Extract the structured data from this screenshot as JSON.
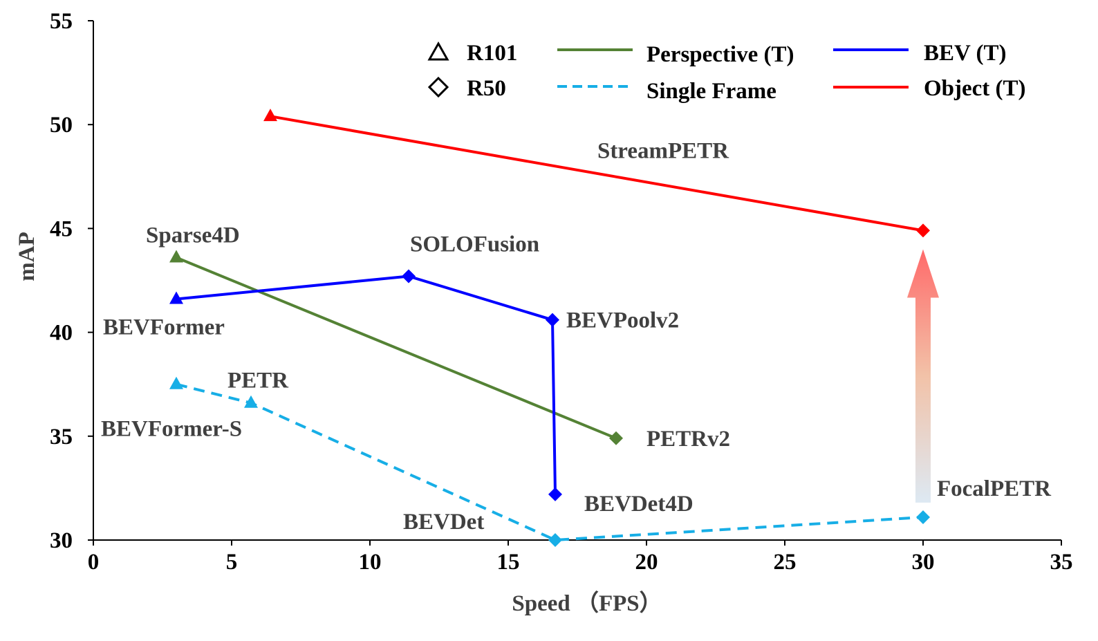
{
  "chart_data": {
    "type": "line",
    "title": "",
    "xlabel": "Speed （FPS）",
    "ylabel": "mAP",
    "xlim": [
      0,
      35
    ],
    "ylim": [
      30,
      55
    ],
    "xticks": [
      "0",
      "5",
      "10",
      "15",
      "20",
      "25",
      "30",
      "35"
    ],
    "yticks": [
      "30",
      "35",
      "40",
      "45",
      "50",
      "55"
    ],
    "grid": false,
    "legend": {
      "placement": "top",
      "markers": [
        {
          "label": "R101",
          "marker": "triangle"
        },
        {
          "label": "R50",
          "marker": "diamond"
        }
      ],
      "lines": [
        {
          "label": "Perspective (T)",
          "color": "#548235",
          "dash": "solid"
        },
        {
          "label": "Single Frame",
          "color": "#17AEE6",
          "dash": "dashed"
        },
        {
          "label": "BEV (T)",
          "color": "#0000FF",
          "dash": "solid"
        },
        {
          "label": "Object (T)",
          "color": "#FF0000",
          "dash": "solid"
        }
      ]
    },
    "series": [
      {
        "name": "Object (T)",
        "color": "#FF0000",
        "dash": "solid",
        "points": [
          {
            "x": 6.4,
            "y": 50.4,
            "marker": "triangle",
            "label": ""
          },
          {
            "x": 30.0,
            "y": 44.9,
            "marker": "diamond",
            "label": ""
          }
        ]
      },
      {
        "name": "Perspective (T)",
        "color": "#548235",
        "dash": "solid",
        "points": [
          {
            "x": 3.0,
            "y": 43.6,
            "marker": "triangle",
            "label": "Sparse4D"
          },
          {
            "x": 18.9,
            "y": 34.9,
            "marker": "diamond",
            "label": "PETRv2"
          }
        ]
      },
      {
        "name": "BEV (T)",
        "color": "#0000FF",
        "dash": "solid",
        "points": [
          {
            "x": 3.0,
            "y": 41.6,
            "marker": "triangle",
            "label": "BEVFormer"
          },
          {
            "x": 11.4,
            "y": 42.7,
            "marker": "diamond",
            "label": "SOLOFusion"
          },
          {
            "x": 16.6,
            "y": 40.6,
            "marker": "diamond",
            "label": "BEVPoolv2"
          },
          {
            "x": 16.7,
            "y": 32.2,
            "marker": "diamond",
            "label": "BEVDet4D"
          }
        ]
      },
      {
        "name": "Single Frame",
        "color": "#17AEE6",
        "dash": "dashed",
        "points": [
          {
            "x": 3.0,
            "y": 37.5,
            "marker": "triangle",
            "label": "BEVFormer-S"
          },
          {
            "x": 5.7,
            "y": 36.6,
            "marker": "triangle",
            "label": "PETR"
          },
          {
            "x": 16.7,
            "y": 30.0,
            "marker": "diamond",
            "label": "BEVDet"
          },
          {
            "x": 30.0,
            "y": 31.1,
            "marker": "diamond",
            "label": "FocalPETR"
          }
        ]
      }
    ],
    "annotations": [
      {
        "text": "StreamPETR",
        "x": 20.6,
        "y": 48.4
      },
      {
        "type": "arrow",
        "from": {
          "x": 30.0,
          "y": 31.8
        },
        "to": {
          "x": 30.0,
          "y": 44.0
        },
        "gradient": [
          "#DDE9F3",
          "#FF6A6A"
        ]
      }
    ]
  }
}
